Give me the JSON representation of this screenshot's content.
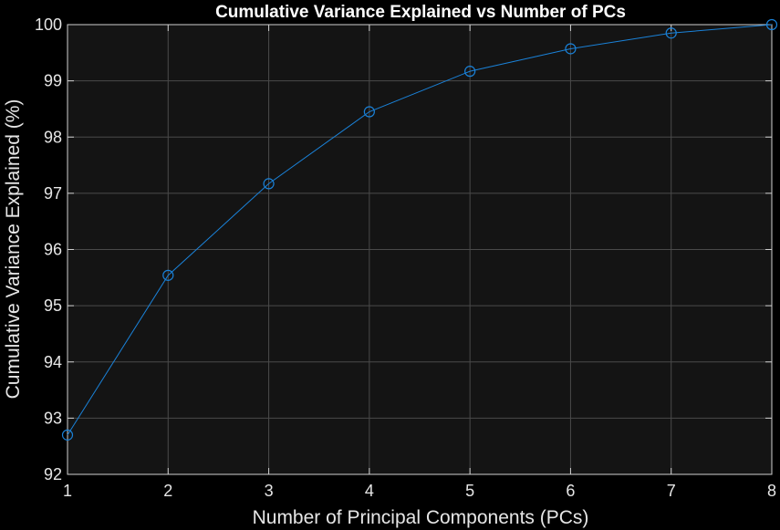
{
  "colors": {
    "background": "#000000",
    "plot_area": "#141414",
    "grid": "#4a4a4a",
    "axis": "#cfcfcf",
    "text": "#e6e6e6",
    "series": "#1a82d9"
  },
  "chart_data": {
    "type": "line",
    "title": "Cumulative Variance Explained vs Number of PCs",
    "xlabel": "Number of Principal Components (PCs)",
    "ylabel": "Cumulative Variance Explained (%)",
    "xlim": [
      1,
      8
    ],
    "ylim": [
      92,
      100
    ],
    "xticks": [
      1,
      2,
      3,
      4,
      5,
      6,
      7,
      8
    ],
    "yticks": [
      92,
      93,
      94,
      95,
      96,
      97,
      98,
      99,
      100
    ],
    "grid": true,
    "marker": "circle",
    "series": [
      {
        "x": [
          1,
          2,
          3,
          4,
          5,
          6,
          7,
          8
        ],
        "values": [
          92.7,
          95.54,
          97.17,
          98.45,
          99.17,
          99.57,
          99.85,
          100.0
        ]
      }
    ]
  }
}
